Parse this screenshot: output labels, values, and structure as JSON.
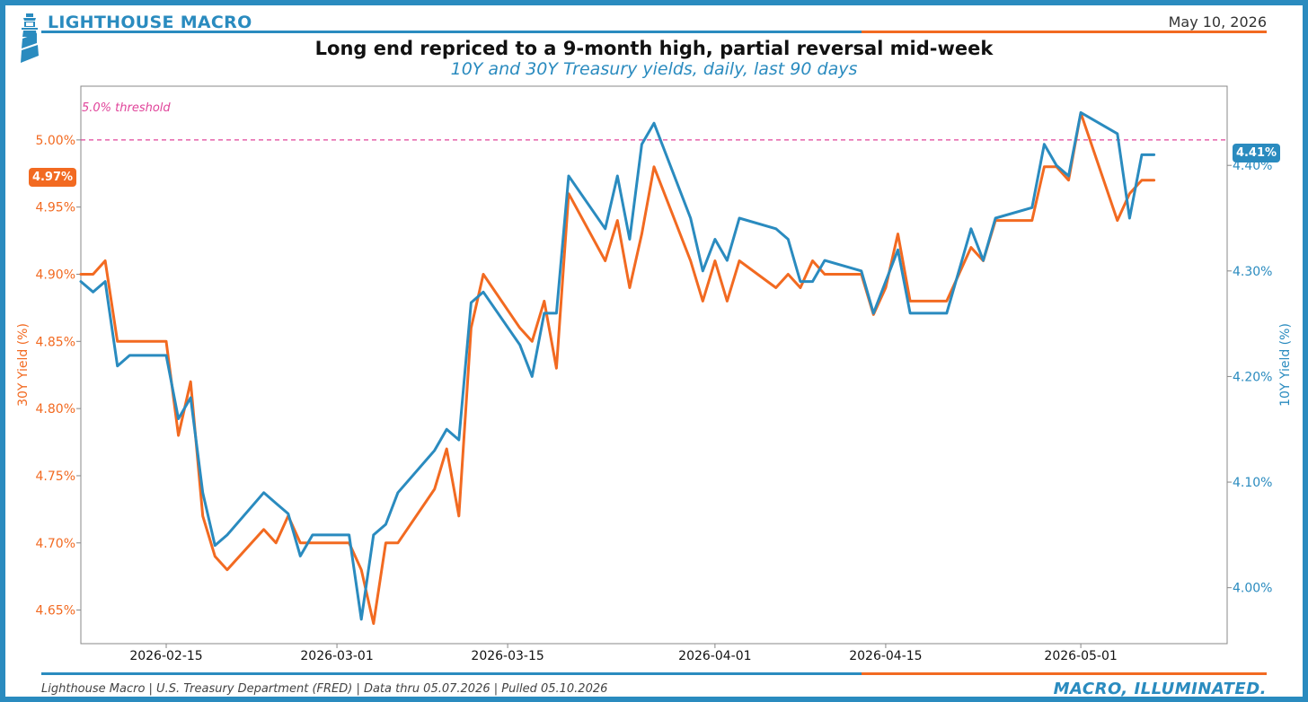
{
  "header": {
    "brand": "LIGHTHOUSE MACRO",
    "date": "May 10, 2026",
    "title": "Long end repriced to a 9-month high, partial reversal mid-week",
    "subtitle": "10Y and 30Y Treasury yields, daily, last 90 days",
    "colors": {
      "brand_blue": "#2a8bbf",
      "accent_orange": "#f26a21",
      "threshold_pink": "#e0449a"
    }
  },
  "footer": {
    "source": "Lighthouse Macro | U.S. Treasury Department (FRED) | Data thru 05.07.2026 | Pulled 05.10.2026",
    "tagline": "MACRO, ILLUMINATED."
  },
  "badges": {
    "left": "4.97%",
    "right": "4.41%"
  },
  "chart_data": {
    "type": "line",
    "threshold": {
      "value": 5.0,
      "label": "5.0% threshold",
      "axis": "left"
    },
    "x_ticks": [
      "2026-02-15",
      "2026-03-01",
      "2026-03-15",
      "2026-04-01",
      "2026-04-15",
      "2026-05-01"
    ],
    "xlim": [
      "2026-02-08",
      "2026-05-13"
    ],
    "y_left": {
      "label": "30Y Yield (%)",
      "lim": [
        4.625,
        5.04
      ],
      "ticks": [
        "4.65%",
        "4.70%",
        "4.75%",
        "4.80%",
        "4.85%",
        "4.90%",
        "4.95%",
        "5.00%"
      ],
      "tick_values": [
        4.65,
        4.7,
        4.75,
        4.8,
        4.85,
        4.9,
        4.95,
        5.0
      ]
    },
    "y_right": {
      "label": "10Y Yield (%)",
      "lim": [
        3.947,
        4.475
      ],
      "ticks": [
        "4.00%",
        "4.10%",
        "4.20%",
        "4.30%",
        "4.40%"
      ],
      "tick_values": [
        4.0,
        4.1,
        4.2,
        4.3,
        4.4
      ]
    },
    "grid": false,
    "series": [
      {
        "name": "30Y",
        "axis": "left",
        "color": "#f26a21",
        "x": [
          "2026-02-08",
          "2026-02-09",
          "2026-02-10",
          "2026-02-11",
          "2026-02-12",
          "2026-02-13",
          "2026-02-14",
          "2026-02-15",
          "2026-02-16",
          "2026-02-17",
          "2026-02-18",
          "2026-02-19",
          "2026-02-20",
          "2026-02-23",
          "2026-02-24",
          "2026-02-25",
          "2026-02-26",
          "2026-02-27",
          "2026-03-02",
          "2026-03-03",
          "2026-03-04",
          "2026-03-05",
          "2026-03-06",
          "2026-03-09",
          "2026-03-10",
          "2026-03-11",
          "2026-03-12",
          "2026-03-13",
          "2026-03-16",
          "2026-03-17",
          "2026-03-18",
          "2026-03-19",
          "2026-03-20",
          "2026-03-23",
          "2026-03-24",
          "2026-03-25",
          "2026-03-26",
          "2026-03-27",
          "2026-03-30",
          "2026-03-31",
          "2026-04-01",
          "2026-04-02",
          "2026-04-03",
          "2026-04-06",
          "2026-04-07",
          "2026-04-08",
          "2026-04-09",
          "2026-04-10",
          "2026-04-13",
          "2026-04-14",
          "2026-04-15",
          "2026-04-16",
          "2026-04-17",
          "2026-04-20",
          "2026-04-21",
          "2026-04-22",
          "2026-04-23",
          "2026-04-24",
          "2026-04-27",
          "2026-04-28",
          "2026-04-29",
          "2026-04-30",
          "2026-05-01",
          "2026-05-04",
          "2026-05-05",
          "2026-05-06",
          "2026-05-07"
        ],
        "values": [
          4.9,
          4.9,
          4.91,
          4.85,
          4.85,
          4.85,
          4.85,
          4.85,
          4.78,
          4.82,
          4.72,
          4.69,
          4.68,
          4.71,
          4.7,
          4.72,
          4.7,
          4.7,
          4.7,
          4.68,
          4.64,
          4.7,
          4.7,
          4.74,
          4.77,
          4.72,
          4.86,
          4.9,
          4.86,
          4.85,
          4.88,
          4.83,
          4.96,
          4.91,
          4.94,
          4.89,
          4.93,
          4.98,
          4.91,
          4.88,
          4.91,
          4.88,
          4.91,
          4.89,
          4.9,
          4.89,
          4.91,
          4.9,
          4.9,
          4.87,
          4.89,
          4.93,
          4.88,
          4.88,
          4.9,
          4.92,
          4.91,
          4.94,
          4.94,
          4.98,
          4.98,
          4.97,
          5.02,
          4.94,
          4.96,
          4.97,
          4.97
        ]
      },
      {
        "name": "10Y",
        "axis": "right",
        "color": "#2a8bbf",
        "x": [
          "2026-02-08",
          "2026-02-09",
          "2026-02-10",
          "2026-02-11",
          "2026-02-12",
          "2026-02-13",
          "2026-02-14",
          "2026-02-15",
          "2026-02-16",
          "2026-02-17",
          "2026-02-18",
          "2026-02-19",
          "2026-02-20",
          "2026-02-23",
          "2026-02-24",
          "2026-02-25",
          "2026-02-26",
          "2026-02-27",
          "2026-03-02",
          "2026-03-03",
          "2026-03-04",
          "2026-03-05",
          "2026-03-06",
          "2026-03-09",
          "2026-03-10",
          "2026-03-11",
          "2026-03-12",
          "2026-03-13",
          "2026-03-16",
          "2026-03-17",
          "2026-03-18",
          "2026-03-19",
          "2026-03-20",
          "2026-03-23",
          "2026-03-24",
          "2026-03-25",
          "2026-03-26",
          "2026-03-27",
          "2026-03-30",
          "2026-03-31",
          "2026-04-01",
          "2026-04-02",
          "2026-04-03",
          "2026-04-06",
          "2026-04-07",
          "2026-04-08",
          "2026-04-09",
          "2026-04-10",
          "2026-04-13",
          "2026-04-14",
          "2026-04-15",
          "2026-04-16",
          "2026-04-17",
          "2026-04-20",
          "2026-04-21",
          "2026-04-22",
          "2026-04-23",
          "2026-04-24",
          "2026-04-27",
          "2026-04-28",
          "2026-04-29",
          "2026-04-30",
          "2026-05-01",
          "2026-05-04",
          "2026-05-05",
          "2026-05-06",
          "2026-05-07"
        ],
        "values": [
          4.29,
          4.28,
          4.29,
          4.21,
          4.22,
          4.22,
          4.22,
          4.22,
          4.16,
          4.18,
          4.09,
          4.04,
          4.05,
          4.09,
          4.08,
          4.07,
          4.03,
          4.05,
          4.05,
          3.97,
          4.05,
          4.06,
          4.09,
          4.13,
          4.15,
          4.14,
          4.27,
          4.28,
          4.23,
          4.2,
          4.26,
          4.26,
          4.39,
          4.34,
          4.39,
          4.33,
          4.42,
          4.44,
          4.35,
          4.3,
          4.33,
          4.31,
          4.35,
          4.34,
          4.33,
          4.29,
          4.29,
          4.31,
          4.3,
          4.26,
          4.29,
          4.32,
          4.26,
          4.26,
          4.3,
          4.34,
          4.31,
          4.35,
          4.36,
          4.42,
          4.4,
          4.39,
          4.45,
          4.43,
          4.35,
          4.41,
          4.41
        ]
      }
    ]
  }
}
